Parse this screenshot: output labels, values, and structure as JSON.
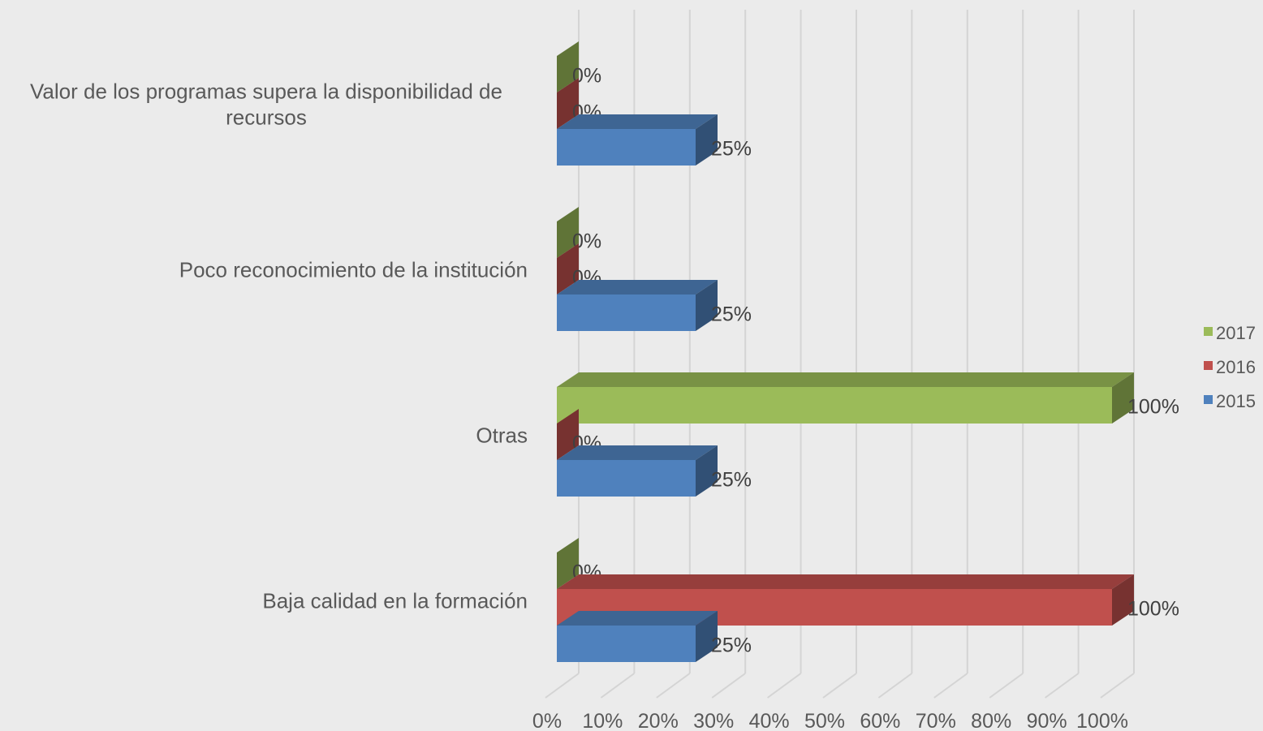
{
  "chart_data": {
    "type": "bar",
    "orientation": "horizontal",
    "three_d": true,
    "categories": [
      "Valor de los programas supera la disponibilidad de recursos",
      "Poco reconocimiento de la institución",
      "Otras",
      "Baja calidad en la formación"
    ],
    "category_lines": [
      [
        "Valor de los programas supera la disponibilidad de",
        "recursos"
      ],
      [
        "Poco reconocimiento de la institución"
      ],
      [
        "Otras"
      ],
      [
        "Baja calidad en la formación"
      ]
    ],
    "series": [
      {
        "name": "2017",
        "color": "#9bbb59",
        "values": [
          0,
          0,
          100,
          0
        ],
        "labels": [
          "0%",
          "0%",
          "100%",
          "0%"
        ]
      },
      {
        "name": "2016",
        "color": "#c0504d",
        "values": [
          0,
          0,
          0,
          100
        ],
        "labels": [
          "0%",
          "0%",
          "0%",
          "100%"
        ]
      },
      {
        "name": "2015",
        "color": "#4f81bd",
        "values": [
          25,
          25,
          25,
          25
        ],
        "labels": [
          "25%",
          "25%",
          "25%",
          "25%"
        ]
      }
    ],
    "xlim": [
      0,
      100
    ],
    "x_ticks": [
      0,
      10,
      20,
      30,
      40,
      50,
      60,
      70,
      80,
      90,
      100
    ],
    "x_tick_labels": [
      "0%",
      "10%",
      "20%",
      "30%",
      "40%",
      "50%",
      "60%",
      "70%",
      "80%",
      "90%",
      "100%"
    ],
    "grid": true,
    "legend_position": "right",
    "title": "",
    "xlabel": "",
    "ylabel": ""
  }
}
